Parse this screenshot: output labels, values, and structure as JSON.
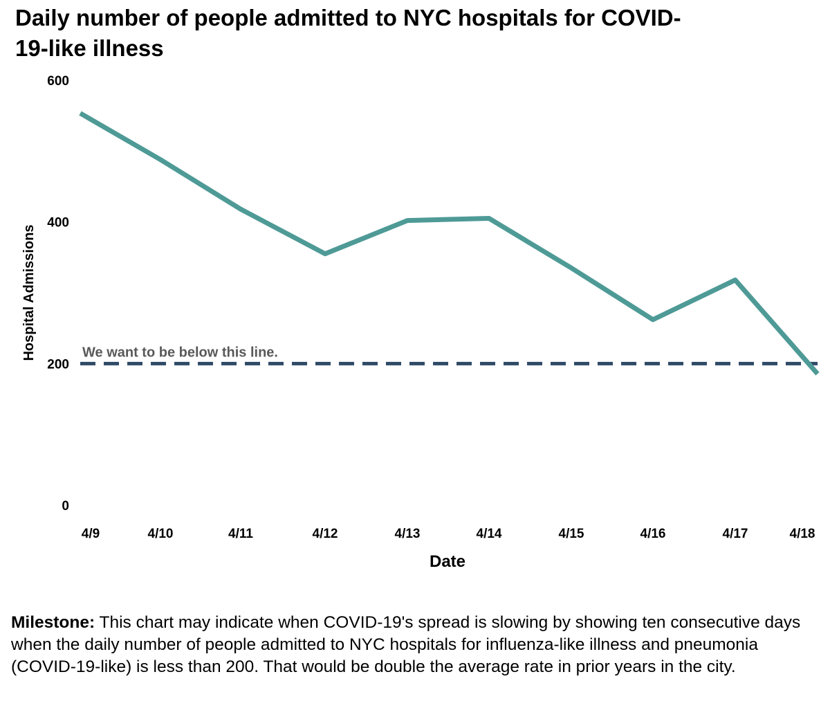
{
  "title": "Daily number of people admitted to NYC hospitals for COVID-19-like illness",
  "chart_data": {
    "type": "line",
    "categories": [
      "4/9",
      "4/10",
      "4/11",
      "4/12",
      "4/13",
      "4/14",
      "4/15",
      "4/16",
      "4/17",
      "4/18"
    ],
    "series": [
      {
        "values": [
          545,
          488,
          418,
          355,
          402,
          405,
          335,
          262,
          318,
          210
        ],
        "color": "#4e9a96"
      }
    ],
    "xlabel": "Date",
    "ylabel": "Hospital Admissions",
    "ylim": [
      0,
      600
    ],
    "yticks": [
      0,
      200,
      400,
      600
    ],
    "grid": false,
    "reference_line": {
      "value": 200,
      "label": "We want to be below this line.",
      "style": "dashed",
      "color": "#2f4a66"
    }
  },
  "note": {
    "label": "Milestone:",
    "text": " This chart may indicate when COVID-19's spread is slowing by showing ten consecutive days when the daily number of people admitted to NYC hospitals for influenza-like illness and pneumonia (COVID-19-like) is less than 200. That would be double the average rate in prior years in the city."
  }
}
